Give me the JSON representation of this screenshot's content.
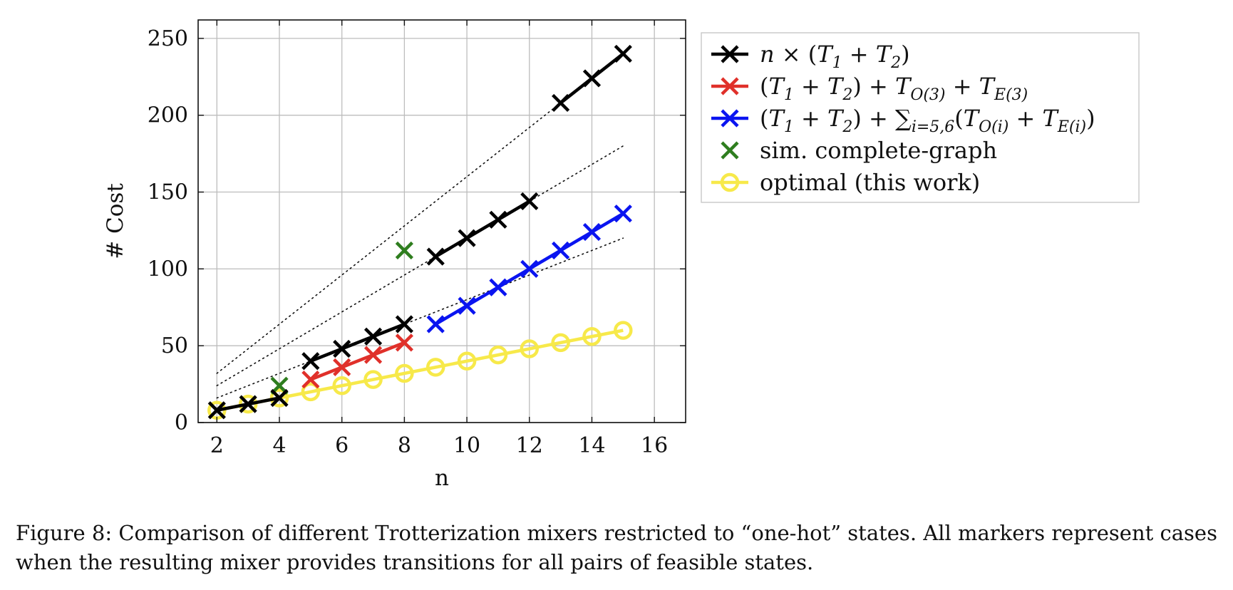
{
  "chart_data": {
    "type": "line",
    "xlabel": "n",
    "ylabel": "# Cost",
    "xlim": [
      1.4,
      17
    ],
    "ylim": [
      0,
      262
    ],
    "xticks": [
      2,
      4,
      6,
      8,
      10,
      12,
      14,
      16
    ],
    "yticks": [
      0,
      50,
      100,
      150,
      200,
      250
    ],
    "grid": true,
    "legend_position": "outside-right-top",
    "series": [
      {
        "id": "black",
        "color": "#000000",
        "marker": "x",
        "legend": [
          "n",
          " × (",
          "T",
          "1",
          " + ",
          "T",
          "2",
          ")"
        ],
        "segments": [
          [
            [
              2,
              8
            ],
            [
              3,
              12
            ],
            [
              4,
              16
            ]
          ],
          [
            [
              5,
              40
            ],
            [
              6,
              48
            ],
            [
              7,
              56
            ],
            [
              8,
              64
            ]
          ],
          [
            [
              9,
              108
            ],
            [
              10,
              120
            ],
            [
              11,
              132
            ],
            [
              12,
              144
            ]
          ],
          [
            [
              13,
              208
            ],
            [
              14,
              224
            ],
            [
              15,
              240
            ]
          ]
        ]
      },
      {
        "id": "red",
        "color": "#e0302a",
        "marker": "x",
        "legend": [
          "(",
          "T",
          "1",
          " + ",
          "T",
          "2",
          ") + ",
          "T",
          "O(3)",
          " + ",
          "T",
          "E(3)"
        ],
        "segments": [
          [
            [
              5,
              28
            ],
            [
              6,
              36
            ],
            [
              7,
              44
            ],
            [
              8,
              52
            ]
          ]
        ]
      },
      {
        "id": "blue",
        "color": "#0a14f0",
        "marker": "x",
        "legend": [
          "(",
          "T",
          "1",
          " + ",
          "T",
          "2",
          ") + ",
          "∑",
          "i=5,6",
          "(",
          "T",
          "O(i)",
          " + ",
          "T",
          "E(i)",
          ")"
        ],
        "segments": [
          [
            [
              9,
              64
            ],
            [
              10,
              76
            ],
            [
              11,
              88
            ],
            [
              12,
              100
            ],
            [
              13,
              112
            ],
            [
              14,
              124
            ],
            [
              15,
              136
            ]
          ]
        ]
      },
      {
        "id": "green",
        "color": "#2e7d1e",
        "marker": "x",
        "legend": [
          "sim. complete-graph"
        ],
        "segments": [
          [
            [
              4,
              24
            ]
          ],
          [
            [
              8,
              112
            ]
          ]
        ]
      },
      {
        "id": "yellow",
        "color": "#f7e94a",
        "marker": "o",
        "legend": [
          "optimal (this work)"
        ],
        "segments": [
          [
            [
              2,
              8
            ],
            [
              3,
              12
            ],
            [
              4,
              16
            ],
            [
              5,
              20
            ],
            [
              6,
              24
            ],
            [
              7,
              28
            ],
            [
              8,
              32
            ],
            [
              9,
              36
            ],
            [
              10,
              40
            ],
            [
              11,
              44
            ],
            [
              12,
              48
            ],
            [
              13,
              52
            ],
            [
              14,
              56
            ],
            [
              15,
              60
            ]
          ]
        ]
      }
    ],
    "reference_lines": [
      [
        [
          2,
          32
        ],
        [
          15,
          240
        ]
      ],
      [
        [
          2,
          24
        ],
        [
          15,
          180
        ]
      ],
      [
        [
          2,
          16
        ],
        [
          15,
          120
        ]
      ]
    ]
  },
  "caption": "Figure 8: Comparison of different Trotterization mixers restricted to “one-hot” states. All markers represent cases when the resulting mixer provides transitions for all pairs of feasible states."
}
